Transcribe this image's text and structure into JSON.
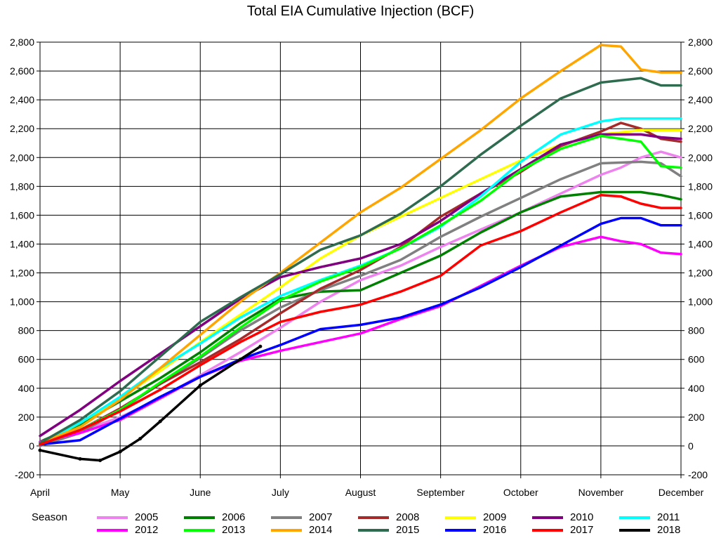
{
  "chart_data": {
    "type": "line",
    "title": "Total EIA Cumulative Injection (BCF)",
    "xlabel": "",
    "ylabel": "",
    "ylim": [
      -200,
      2800
    ],
    "yticks": [
      -200,
      0,
      200,
      400,
      600,
      800,
      1000,
      1200,
      1400,
      1600,
      1800,
      2000,
      2200,
      2400,
      2600,
      2800
    ],
    "ytick_labels": [
      "-200",
      "0",
      "200",
      "400",
      "600",
      "800",
      "1,000",
      "1,200",
      "1,400",
      "1,600",
      "1,800",
      "2,000",
      "2,200",
      "2,400",
      "2,600",
      "2,800"
    ],
    "xlim": [
      0,
      8
    ],
    "x_tick_labels": [
      "April",
      "May",
      "June",
      "July",
      "August",
      "September",
      "October",
      "November",
      "December"
    ],
    "x_unit": "months since start of April",
    "grid": true,
    "right_axis": true,
    "legend_title": "Season",
    "legend_position": "bottom",
    "series": [
      {
        "name": "2005",
        "color": "#ee82ee",
        "points": [
          [
            0,
            20
          ],
          [
            0.5,
            100
          ],
          [
            1,
            200
          ],
          [
            1.5,
            330
          ],
          [
            2,
            490
          ],
          [
            2.5,
            650
          ],
          [
            3,
            820
          ],
          [
            3.5,
            1000
          ],
          [
            4,
            1150
          ],
          [
            4.5,
            1250
          ],
          [
            5,
            1380
          ],
          [
            5.5,
            1500
          ],
          [
            6,
            1620
          ],
          [
            6.5,
            1750
          ],
          [
            7,
            1880
          ],
          [
            7.25,
            1930
          ],
          [
            7.5,
            2000
          ],
          [
            7.75,
            2040
          ],
          [
            8,
            2000
          ]
        ]
      },
      {
        "name": "2006",
        "color": "#008000",
        "points": [
          [
            0,
            30
          ],
          [
            0.5,
            150
          ],
          [
            1,
            310
          ],
          [
            1.5,
            470
          ],
          [
            2,
            650
          ],
          [
            2.5,
            850
          ],
          [
            3,
            1020
          ],
          [
            3.5,
            1070
          ],
          [
            4,
            1080
          ],
          [
            4.5,
            1200
          ],
          [
            5,
            1320
          ],
          [
            5.5,
            1480
          ],
          [
            6,
            1620
          ],
          [
            6.5,
            1730
          ],
          [
            7,
            1760
          ],
          [
            7.5,
            1760
          ],
          [
            7.75,
            1740
          ],
          [
            8,
            1710
          ]
        ]
      },
      {
        "name": "2007",
        "color": "#808080",
        "points": [
          [
            0,
            0
          ],
          [
            0.5,
            90
          ],
          [
            1,
            250
          ],
          [
            1.5,
            430
          ],
          [
            2,
            610
          ],
          [
            2.5,
            800
          ],
          [
            3,
            960
          ],
          [
            3.5,
            1080
          ],
          [
            4,
            1180
          ],
          [
            4.5,
            1290
          ],
          [
            5,
            1450
          ],
          [
            5.5,
            1590
          ],
          [
            6,
            1720
          ],
          [
            6.5,
            1850
          ],
          [
            7,
            1960
          ],
          [
            7.5,
            1970
          ],
          [
            7.75,
            1960
          ],
          [
            8,
            1870
          ]
        ]
      },
      {
        "name": "2008",
        "color": "#a52a2a",
        "points": [
          [
            0,
            10
          ],
          [
            0.5,
            110
          ],
          [
            1,
            260
          ],
          [
            1.5,
            430
          ],
          [
            2,
            580
          ],
          [
            2.5,
            740
          ],
          [
            3,
            920
          ],
          [
            3.5,
            1090
          ],
          [
            4,
            1220
          ],
          [
            4.5,
            1380
          ],
          [
            5,
            1590
          ],
          [
            5.5,
            1750
          ],
          [
            6,
            1900
          ],
          [
            6.5,
            2080
          ],
          [
            7,
            2180
          ],
          [
            7.25,
            2240
          ],
          [
            7.5,
            2200
          ],
          [
            7.75,
            2130
          ],
          [
            8,
            2110
          ]
        ]
      },
      {
        "name": "2009",
        "color": "#ffff00",
        "points": [
          [
            0,
            10
          ],
          [
            0.5,
            160
          ],
          [
            1,
            330
          ],
          [
            1.5,
            520
          ],
          [
            2,
            720
          ],
          [
            2.5,
            910
          ],
          [
            3,
            1100
          ],
          [
            3.5,
            1300
          ],
          [
            4,
            1460
          ],
          [
            4.5,
            1590
          ],
          [
            5,
            1720
          ],
          [
            5.5,
            1850
          ],
          [
            6,
            1980
          ],
          [
            6.5,
            2090
          ],
          [
            7,
            2160
          ],
          [
            7.5,
            2190
          ],
          [
            8,
            2190
          ]
        ]
      },
      {
        "name": "2010",
        "color": "#800080",
        "points": [
          [
            0,
            70
          ],
          [
            0.5,
            250
          ],
          [
            1,
            450
          ],
          [
            1.5,
            640
          ],
          [
            2,
            830
          ],
          [
            2.5,
            1020
          ],
          [
            3,
            1170
          ],
          [
            3.5,
            1240
          ],
          [
            4,
            1300
          ],
          [
            4.5,
            1400
          ],
          [
            5,
            1560
          ],
          [
            5.5,
            1750
          ],
          [
            6,
            1920
          ],
          [
            6.5,
            2090
          ],
          [
            7,
            2160
          ],
          [
            7.5,
            2160
          ],
          [
            7.75,
            2140
          ],
          [
            8,
            2130
          ]
        ]
      },
      {
        "name": "2011",
        "color": "#00ffff",
        "points": [
          [
            0,
            20
          ],
          [
            0.5,
            160
          ],
          [
            1,
            340
          ],
          [
            1.5,
            540
          ],
          [
            2,
            710
          ],
          [
            2.5,
            890
          ],
          [
            3,
            1040
          ],
          [
            3.5,
            1150
          ],
          [
            4,
            1250
          ],
          [
            4.5,
            1370
          ],
          [
            5,
            1520
          ],
          [
            5.5,
            1730
          ],
          [
            6,
            1970
          ],
          [
            6.5,
            2160
          ],
          [
            7,
            2250
          ],
          [
            7.25,
            2270
          ],
          [
            7.5,
            2270
          ],
          [
            8,
            2270
          ]
        ]
      },
      {
        "name": "2012",
        "color": "#ff00ff",
        "points": [
          [
            0,
            30
          ],
          [
            0.5,
            90
          ],
          [
            1,
            180
          ],
          [
            1.5,
            330
          ],
          [
            2,
            480
          ],
          [
            2.5,
            590
          ],
          [
            3,
            660
          ],
          [
            3.5,
            720
          ],
          [
            4,
            780
          ],
          [
            4.5,
            880
          ],
          [
            5,
            970
          ],
          [
            5.5,
            1110
          ],
          [
            6,
            1250
          ],
          [
            6.5,
            1380
          ],
          [
            7,
            1450
          ],
          [
            7.25,
            1420
          ],
          [
            7.5,
            1400
          ],
          [
            7.75,
            1340
          ],
          [
            8,
            1330
          ]
        ]
      },
      {
        "name": "2013",
        "color": "#00ff00",
        "points": [
          [
            0,
            20
          ],
          [
            0.5,
            110
          ],
          [
            1,
            250
          ],
          [
            1.5,
            440
          ],
          [
            2,
            620
          ],
          [
            2.5,
            820
          ],
          [
            3,
            1010
          ],
          [
            3.5,
            1140
          ],
          [
            4,
            1240
          ],
          [
            4.5,
            1370
          ],
          [
            5,
            1530
          ],
          [
            5.5,
            1700
          ],
          [
            6,
            1910
          ],
          [
            6.5,
            2060
          ],
          [
            7,
            2150
          ],
          [
            7.5,
            2110
          ],
          [
            7.75,
            1940
          ],
          [
            8,
            1930
          ]
        ]
      },
      {
        "name": "2014",
        "color": "#ffa500",
        "points": [
          [
            0,
            20
          ],
          [
            0.5,
            130
          ],
          [
            1,
            320
          ],
          [
            1.5,
            540
          ],
          [
            2,
            770
          ],
          [
            2.5,
            1000
          ],
          [
            3,
            1200
          ],
          [
            3.5,
            1410
          ],
          [
            4,
            1620
          ],
          [
            4.5,
            1790
          ],
          [
            5,
            1990
          ],
          [
            5.5,
            2190
          ],
          [
            6,
            2410
          ],
          [
            6.5,
            2600
          ],
          [
            7,
            2780
          ],
          [
            7.25,
            2770
          ],
          [
            7.5,
            2610
          ],
          [
            7.75,
            2590
          ],
          [
            8,
            2590
          ]
        ]
      },
      {
        "name": "2015",
        "color": "#2e6b4f",
        "points": [
          [
            0,
            20
          ],
          [
            0.5,
            180
          ],
          [
            1,
            380
          ],
          [
            1.5,
            620
          ],
          [
            2,
            860
          ],
          [
            2.5,
            1030
          ],
          [
            3,
            1190
          ],
          [
            3.5,
            1360
          ],
          [
            4,
            1460
          ],
          [
            4.5,
            1610
          ],
          [
            5,
            1800
          ],
          [
            5.5,
            2020
          ],
          [
            6,
            2220
          ],
          [
            6.5,
            2410
          ],
          [
            7,
            2520
          ],
          [
            7.5,
            2550
          ],
          [
            7.75,
            2500
          ],
          [
            8,
            2500
          ]
        ]
      },
      {
        "name": "2016",
        "color": "#0000ff",
        "points": [
          [
            0,
            10
          ],
          [
            0.5,
            40
          ],
          [
            1,
            190
          ],
          [
            1.5,
            340
          ],
          [
            2,
            480
          ],
          [
            2.5,
            600
          ],
          [
            3,
            700
          ],
          [
            3.5,
            810
          ],
          [
            4,
            840
          ],
          [
            4.5,
            890
          ],
          [
            5,
            980
          ],
          [
            5.5,
            1100
          ],
          [
            6,
            1240
          ],
          [
            6.5,
            1390
          ],
          [
            7,
            1540
          ],
          [
            7.25,
            1580
          ],
          [
            7.5,
            1580
          ],
          [
            7.75,
            1530
          ],
          [
            8,
            1530
          ]
        ]
      },
      {
        "name": "2017",
        "color": "#ff0000",
        "points": [
          [
            0,
            10
          ],
          [
            0.5,
            110
          ],
          [
            1,
            240
          ],
          [
            1.5,
            390
          ],
          [
            2,
            560
          ],
          [
            2.5,
            720
          ],
          [
            3,
            860
          ],
          [
            3.5,
            930
          ],
          [
            4,
            980
          ],
          [
            4.5,
            1070
          ],
          [
            5,
            1180
          ],
          [
            5.5,
            1390
          ],
          [
            6,
            1490
          ],
          [
            6.5,
            1620
          ],
          [
            7,
            1740
          ],
          [
            7.25,
            1730
          ],
          [
            7.5,
            1680
          ],
          [
            7.75,
            1650
          ],
          [
            8,
            1650
          ]
        ]
      },
      {
        "name": "2018",
        "color": "#000000",
        "points": [
          [
            0,
            -30
          ],
          [
            0.5,
            -90
          ],
          [
            0.75,
            -100
          ],
          [
            1,
            -40
          ],
          [
            1.25,
            50
          ],
          [
            1.5,
            170
          ],
          [
            2,
            420
          ],
          [
            2.5,
            600
          ],
          [
            2.75,
            690
          ]
        ]
      }
    ]
  }
}
